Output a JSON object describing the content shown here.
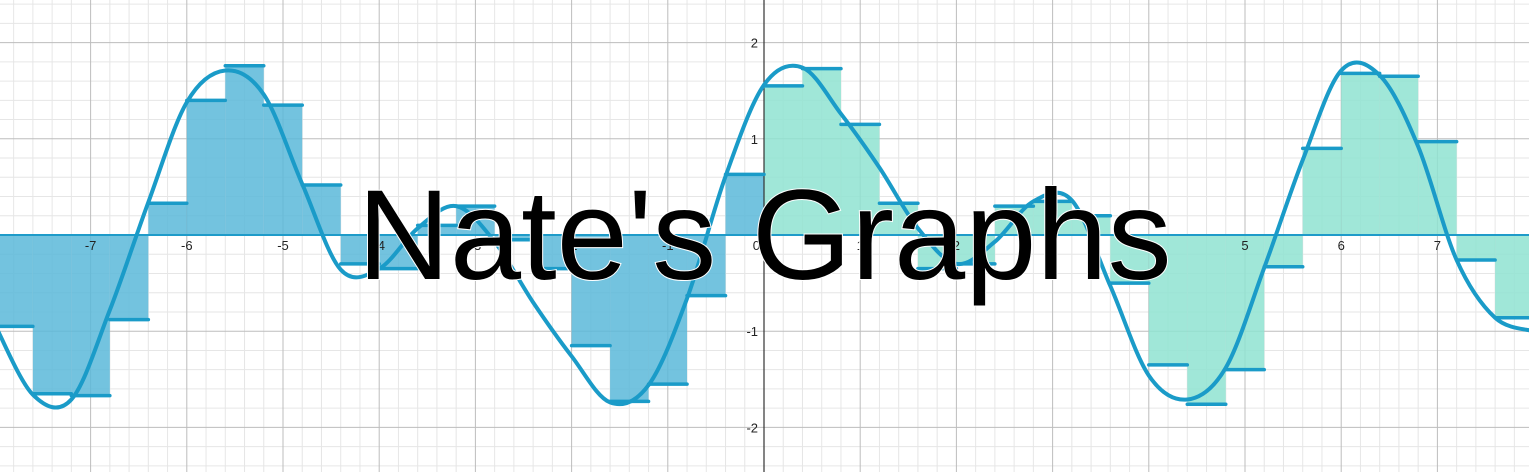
{
  "title": "Nate's Graphs",
  "colors": {
    "curve": "#1a9bc8",
    "fill_left": "#5ab9d9",
    "fill_right": "#8fe3d1",
    "axis": "#1e9bc9",
    "grid_major": "#bdbdbd",
    "grid_minor": "#e6e6e6",
    "background": "#ffffff"
  },
  "chart_data": {
    "type": "line",
    "title": "Nate's Graphs",
    "xlabel": "",
    "ylabel": "",
    "xlim": [
      -7.95,
      7.95
    ],
    "ylim": [
      -2.45,
      2.45
    ],
    "grid": true,
    "x_tick_labels": [
      "-7",
      "-6",
      "-5",
      "-4",
      "-3",
      "-2",
      "-1",
      "0",
      "1",
      "2",
      "3",
      "4",
      "5",
      "6",
      "7"
    ],
    "y_tick_labels": [
      "2",
      "1",
      "-1",
      "-2"
    ],
    "series": [
      {
        "kind": "curve",
        "x": [
          -8,
          -7.6,
          -7.2,
          -6.8,
          -6.4,
          -6.0,
          -5.6,
          -5.2,
          -4.8,
          -4.4,
          -4.0,
          -3.6,
          -3.2,
          -2.8,
          -2.4,
          -2.0,
          -1.6,
          -1.2,
          -0.8,
          -0.4,
          0.0,
          0.4,
          0.8,
          1.2,
          1.6,
          2.0,
          2.4,
          2.8,
          3.2,
          3.6,
          4.0,
          4.4,
          4.8,
          5.2,
          5.6,
          6.0,
          6.4,
          6.8,
          7.2,
          7.6,
          8.0
        ],
        "y": [
          -0.92,
          -1.66,
          -1.71,
          -0.78,
          0.34,
          1.38,
          1.71,
          1.46,
          0.53,
          -0.36,
          -0.35,
          0.07,
          0.3,
          -0.07,
          -0.7,
          -1.26,
          -1.74,
          -1.56,
          -0.66,
          0.61,
          1.56,
          1.74,
          1.26,
          0.7,
          0.07,
          -0.3,
          -0.07,
          0.35,
          0.36,
          -0.53,
          -1.46,
          -1.71,
          -1.38,
          -0.34,
          0.78,
          1.71,
          1.66,
          0.92,
          -0.26,
          -0.86,
          -1.0
        ]
      },
      {
        "kind": "riemann",
        "width": 0.4,
        "x_left": [
          -8.0,
          -7.6,
          -7.2,
          -6.8,
          -6.4,
          -6.0,
          -5.6,
          -5.2,
          -4.8,
          -4.4,
          -4.0,
          -3.6,
          -3.2,
          -2.8,
          -2.4,
          -2.0,
          -1.6,
          -1.2,
          -0.8,
          -0.4,
          0.0,
          0.4,
          0.8,
          1.2,
          1.6,
          2.0,
          2.4,
          2.8,
          3.2,
          3.6,
          4.0,
          4.4,
          4.8,
          5.2,
          5.6,
          6.0,
          6.4,
          6.8,
          7.2,
          7.6
        ],
        "heights": [
          -0.95,
          -1.65,
          -1.67,
          -0.88,
          0.33,
          1.4,
          1.76,
          1.35,
          0.52,
          -0.3,
          -0.35,
          0.1,
          0.3,
          -0.05,
          -0.35,
          -1.15,
          -1.73,
          -1.55,
          -0.63,
          0.63,
          1.55,
          1.73,
          1.15,
          0.33,
          -0.35,
          -0.3,
          0.3,
          0.35,
          0.2,
          -0.5,
          -1.35,
          -1.76,
          -1.4,
          -0.33,
          0.9,
          1.68,
          1.65,
          0.97,
          -0.26,
          -0.86
        ]
      }
    ]
  }
}
